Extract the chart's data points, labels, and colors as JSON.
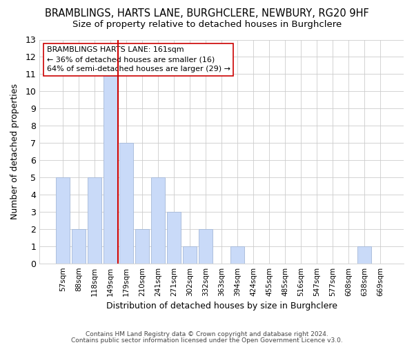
{
  "title": "BRAMBLINGS, HARTS LANE, BURGHCLERE, NEWBURY, RG20 9HF",
  "subtitle": "Size of property relative to detached houses in Burghclere",
  "xlabel": "Distribution of detached houses by size in Burghclere",
  "ylabel": "Number of detached properties",
  "bar_labels": [
    "57sqm",
    "88sqm",
    "118sqm",
    "149sqm",
    "179sqm",
    "210sqm",
    "241sqm",
    "271sqm",
    "302sqm",
    "332sqm",
    "363sqm",
    "394sqm",
    "424sqm",
    "455sqm",
    "485sqm",
    "516sqm",
    "547sqm",
    "577sqm",
    "608sqm",
    "638sqm",
    "669sqm"
  ],
  "bar_values": [
    5,
    2,
    5,
    11,
    7,
    2,
    5,
    3,
    1,
    2,
    0,
    1,
    0,
    0,
    0,
    0,
    0,
    0,
    0,
    1,
    0
  ],
  "bar_color": "#c9daf8",
  "bar_edge_color": "#a4b8d8",
  "property_line_color": "#cc0000",
  "ylim": [
    0,
    13
  ],
  "yticks": [
    0,
    1,
    2,
    3,
    4,
    5,
    6,
    7,
    8,
    9,
    10,
    11,
    12,
    13
  ],
  "annotation_title": "BRAMBLINGS HARTS LANE: 161sqm",
  "annotation_line1": "← 36% of detached houses are smaller (16)",
  "annotation_line2": "64% of semi-detached houses are larger (29) →",
  "footer_line1": "Contains HM Land Registry data © Crown copyright and database right 2024.",
  "footer_line2": "Contains public sector information licensed under the Open Government Licence v3.0.",
  "background_color": "#ffffff",
  "grid_color": "#cccccc",
  "title_fontsize": 10.5,
  "subtitle_fontsize": 9.5
}
